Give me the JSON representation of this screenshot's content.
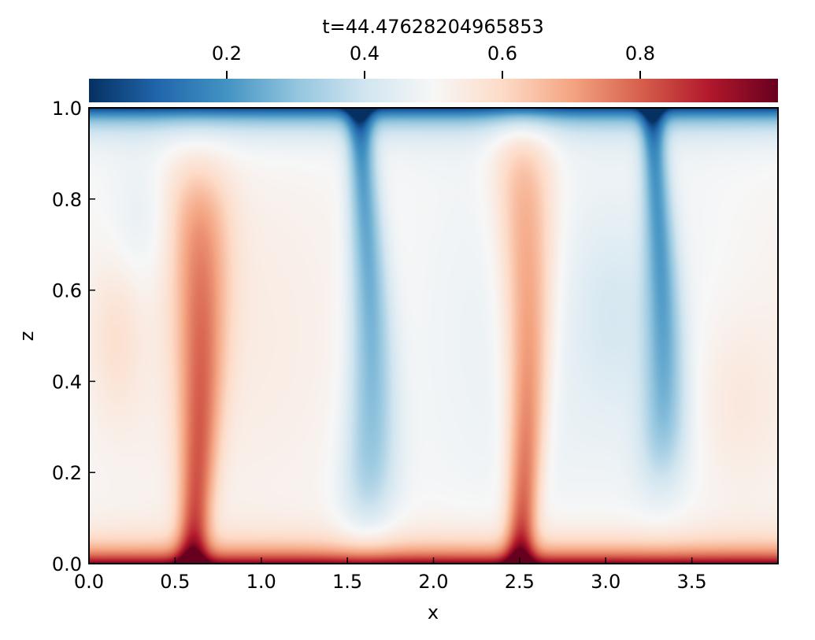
{
  "chart_data": {
    "type": "heatmap",
    "title": "t=44.47628204965853",
    "xlabel": "x",
    "ylabel": "z",
    "xlim": [
      0.0,
      4.0
    ],
    "ylim": [
      0.0,
      1.0
    ],
    "x_ticks": [
      "0.0",
      "0.5",
      "1.0",
      "1.5",
      "2.0",
      "2.5",
      "3.0",
      "3.5"
    ],
    "y_ticks": [
      "0.0",
      "0.2",
      "0.4",
      "0.6",
      "0.8",
      "1.0"
    ],
    "colorbar": {
      "placement": "top",
      "colormap": "RdBu_r",
      "range": [
        0.0,
        1.0
      ],
      "ticks": [
        "0.2",
        "0.4",
        "0.6",
        "0.8"
      ]
    },
    "grid": false,
    "field_description_features": [
      {
        "feature": "cold boundary layer",
        "z_range": [
          0.93,
          1.0
        ],
        "value": 0.05
      },
      {
        "feature": "hot boundary layer",
        "z_range": [
          0.0,
          0.06
        ],
        "value": 0.95
      },
      {
        "feature": "hot plume",
        "x": 0.6,
        "z_range": [
          0.0,
          0.9
        ],
        "value": 0.85
      },
      {
        "feature": "hot plume",
        "x": 2.5,
        "z_range": [
          0.0,
          0.95
        ],
        "value": 0.85
      },
      {
        "feature": "cold plume",
        "x": 1.6,
        "z_range": [
          0.1,
          1.0
        ],
        "value": 0.15
      },
      {
        "feature": "cold plume",
        "x": 3.3,
        "z_range": [
          0.2,
          1.0
        ],
        "value": 0.15
      }
    ]
  },
  "colors": {
    "cmap_stops": [
      "#053061",
      "#2166ac",
      "#4393c3",
      "#92c5de",
      "#d1e5f0",
      "#f7f7f7",
      "#fddbc7",
      "#f4a582",
      "#d6604d",
      "#b2182b",
      "#67001f"
    ]
  }
}
